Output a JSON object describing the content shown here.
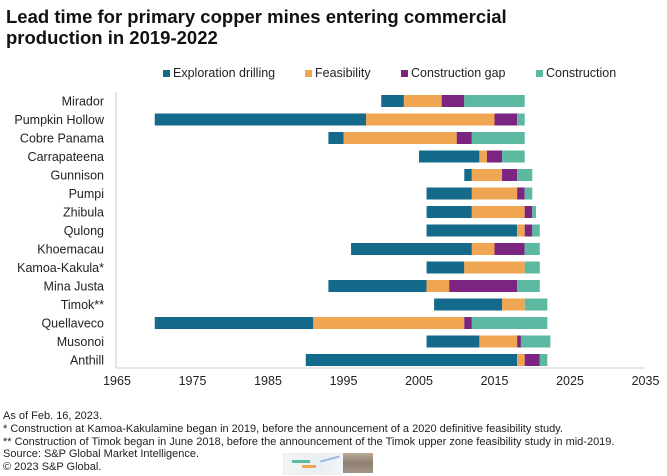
{
  "chart_data": {
    "type": "bar",
    "orientation": "horizontal",
    "stacked": true,
    "title": "Lead time for primary copper mines entering commercial production in 2019-2022",
    "xlabel": "",
    "ylabel": "",
    "xlim": [
      1965,
      2035
    ],
    "xticks": [
      1965,
      1975,
      1985,
      1995,
      2005,
      2015,
      2025,
      2035
    ],
    "grid": false,
    "legend_position": "top",
    "categories": [
      "Mirador",
      "Pumpkin Hollow",
      "Cobre Panama",
      "Carrapateena",
      "Gunnison",
      "Pumpi",
      "Zhibula",
      "Qulong",
      "Khoemacau",
      "Kamoa-Kakula*",
      "Mina Justa",
      "Timok**",
      "Quellaveco",
      "Musonoi",
      "Anthill"
    ],
    "series": [
      {
        "name": "Exploration drilling",
        "color": "#136A8A",
        "ranges": [
          [
            2000,
            2003
          ],
          [
            1970,
            1998
          ],
          [
            1993,
            1995
          ],
          [
            2005,
            2013
          ],
          [
            2011,
            2012
          ],
          [
            2006,
            2012
          ],
          [
            2006,
            2012
          ],
          [
            2006,
            2018
          ],
          [
            1996,
            2012
          ],
          [
            2006,
            2011
          ],
          [
            1993,
            2006
          ],
          [
            2007,
            2016
          ],
          [
            1970,
            1991
          ],
          [
            2006,
            2013
          ],
          [
            1990,
            2018
          ]
        ]
      },
      {
        "name": "Feasibility",
        "color": "#F0A552",
        "ranges": [
          [
            2003,
            2008
          ],
          [
            1998,
            2015
          ],
          [
            1995,
            2010
          ],
          [
            2013,
            2014
          ],
          [
            2012,
            2016
          ],
          [
            2012,
            2018
          ],
          [
            2012,
            2019
          ],
          [
            2018,
            2019
          ],
          [
            2012,
            2015
          ],
          [
            2011,
            2019
          ],
          [
            2006,
            2009
          ],
          [
            2016,
            2019
          ],
          [
            1991,
            2011
          ],
          [
            2013,
            2018
          ],
          [
            2018,
            2019
          ]
        ]
      },
      {
        "name": "Construction gap",
        "color": "#7B2480",
        "ranges": [
          [
            2008,
            2011
          ],
          [
            2015,
            2018
          ],
          [
            2010,
            2012
          ],
          [
            2014,
            2016
          ],
          [
            2016,
            2018
          ],
          [
            2018,
            2019
          ],
          [
            2019,
            2020
          ],
          [
            2019,
            2020
          ],
          [
            2015,
            2019
          ],
          [
            2019,
            2019
          ],
          [
            2009,
            2018
          ],
          [
            2019,
            2019
          ],
          [
            2011,
            2012
          ],
          [
            2018,
            2018.5
          ],
          [
            2019,
            2021
          ]
        ]
      },
      {
        "name": "Construction",
        "color": "#5CB8A0",
        "ranges": [
          [
            2011,
            2019
          ],
          [
            2018,
            2019
          ],
          [
            2012,
            2019
          ],
          [
            2016,
            2019
          ],
          [
            2018,
            2020
          ],
          [
            2019,
            2020
          ],
          [
            2020,
            2020.5
          ],
          [
            2020,
            2021
          ],
          [
            2019,
            2021
          ],
          [
            2019,
            2021
          ],
          [
            2018,
            2021
          ],
          [
            2019,
            2022
          ],
          [
            2012,
            2022
          ],
          [
            2018.5,
            2022.4
          ],
          [
            2021,
            2022
          ]
        ]
      }
    ]
  },
  "footer": {
    "as_of": "As of Feb. 16, 2023.",
    "note1": "* Construction at Kamoa-Kakulamine began in 2019, before the announcement of a 2020 definitive feasibility study.",
    "note2": "** Construction of Timok began in June 2018, before the announcement of the Timok upper zone feasibility study in mid-2019.",
    "source": "Source: S&P Global Market Intelligence.",
    "copyright": "© 2023 S&P Global."
  }
}
